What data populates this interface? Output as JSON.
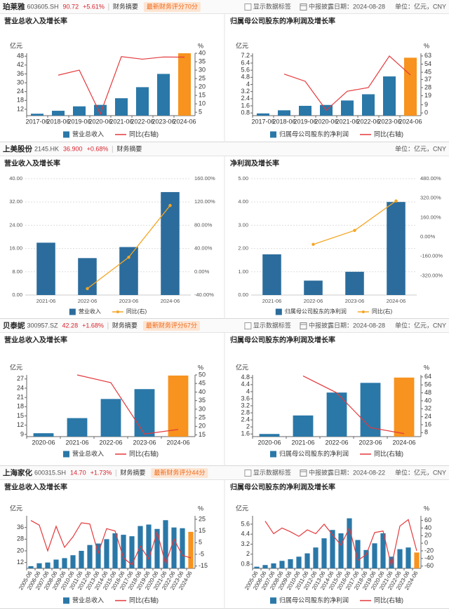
{
  "headers": [
    {
      "name": "珀莱雅",
      "code": "603605.SH",
      "price": "90.72",
      "change": "+5.61%",
      "link": "财务摘要",
      "score": "最新财务评分70分",
      "toggle": "显示数据标签",
      "date": "中报披露日期：2024-08-28",
      "unit": "单位：亿元，CNY"
    },
    {
      "name": "上美股份",
      "code": "2145.HK",
      "price": "36.900",
      "change": "+0.68%",
      "link": "财务摘要",
      "unit": "单位：亿元，CNY"
    },
    {
      "name": "贝泰妮",
      "code": "300957.SZ",
      "price": "42.28",
      "change": "+1.68%",
      "link": "财务摘要",
      "score": "最新财务评分67分",
      "toggle": "显示数据标签",
      "date": "中报披露日期：2024-08-28",
      "unit": "单位：亿元，CNY"
    },
    {
      "name": "上海家化",
      "code": "600315.SH",
      "price": "14.70",
      "change": "+1.73%",
      "link": "财务摘要",
      "score": "最新财务评分44分",
      "toggle": "显示数据标签",
      "date": "中报披露日期：2024-08-22",
      "unit": "单位：亿元，CNY"
    }
  ],
  "chart_data": [
    {
      "type": "combo",
      "title": "营业总收入及增长率",
      "y_unit": "亿元",
      "y2_unit": "%",
      "grid": false,
      "categories": [
        "2017-06",
        "2018-06",
        "2019-06",
        "2020-06",
        "2021-06",
        "2022-06",
        "2023-06",
        "2024-06"
      ],
      "series": [
        {
          "name": "营业总收入",
          "type": "bar",
          "color": "#2a78a8",
          "last_color": "#f7931e",
          "values": [
            9.0,
            11.0,
            14.0,
            15.0,
            19.5,
            27.0,
            36.0,
            50.0
          ]
        },
        {
          "name": "同比(右轴)",
          "type": "line",
          "axis": "y2",
          "color": "#e4393c",
          "values": [
            null,
            27,
            30,
            4,
            38,
            36.5,
            37.8,
            37.7
          ]
        }
      ],
      "ylim": [
        7.7,
        50
      ],
      "yticks": [
        12,
        18,
        24,
        30,
        36,
        42,
        48
      ],
      "y2lim": [
        3,
        40
      ],
      "y2ticks": [
        5,
        10,
        15,
        20,
        25,
        30,
        35,
        40
      ]
    },
    {
      "type": "combo",
      "title": "归属母公司股东的净利润及增长率",
      "y_unit": "亿元",
      "y2_unit": "%",
      "grid": false,
      "categories": [
        "2017-06",
        "2018-06",
        "2019-06",
        "2020-06",
        "2021-06",
        "2022-06",
        "2023-06",
        "2024-06"
      ],
      "series": [
        {
          "name": "归属母公司股东的净利润",
          "type": "bar",
          "color": "#2a78a8",
          "last_color": "#f7931e",
          "values": [
            0.75,
            1.1,
            1.6,
            1.7,
            2.2,
            2.9,
            4.9,
            7.0
          ]
        },
        {
          "name": "同比(右轴)",
          "type": "line",
          "axis": "y2",
          "color": "#e4393c",
          "values": [
            null,
            43,
            35,
            3,
            24,
            28,
            63,
            42
          ]
        }
      ],
      "ylim": [
        0.5,
        7.5
      ],
      "yticks": [
        0.8,
        1.6,
        2.4,
        3.2,
        4,
        4.8,
        5.6,
        6.4,
        7.2
      ],
      "y2lim": [
        -3,
        66
      ],
      "y2ticks": [
        0,
        9,
        19,
        28,
        37,
        45,
        54,
        63
      ]
    },
    {
      "type": "combo",
      "title": "营业收入及增长率",
      "grid": true,
      "markers": true,
      "categories": [
        "2021-06",
        "2022-06",
        "2023-06",
        "2024-06"
      ],
      "series": [
        {
          "name": "营业收入",
          "type": "bar",
          "color": "#2b6c9c",
          "values": [
            18.0,
            12.7,
            16.5,
            35.4
          ]
        },
        {
          "name": "同比(右)",
          "type": "line",
          "axis": "y2",
          "color": "#f5a623",
          "values": [
            null,
            -29,
            25,
            114
          ]
        }
      ],
      "ylim": [
        0,
        40
      ],
      "yticks": [
        {
          "value": 0,
          "label": "0.00"
        },
        {
          "value": 8,
          "label": "8.00"
        },
        {
          "value": 16,
          "label": "16.00"
        },
        {
          "value": 24,
          "label": "24.00"
        },
        {
          "value": 32,
          "label": "32.00"
        },
        {
          "value": 40,
          "label": "40.00"
        }
      ],
      "y2lim": [
        -40,
        160
      ],
      "y2ticks": [
        {
          "value": -40,
          "label": "-40.00%"
        },
        {
          "value": 0,
          "label": "0.00%"
        },
        {
          "value": 40,
          "label": "40.00%"
        },
        {
          "value": 80,
          "label": "80.00%"
        },
        {
          "value": 120,
          "label": "120.00%"
        },
        {
          "value": 160,
          "label": "160.00%"
        }
      ]
    },
    {
      "type": "combo",
      "title": "净利润及增长率",
      "grid": true,
      "markers": true,
      "categories": [
        "2021-06",
        "2022-06",
        "2023-06",
        "2024-06"
      ],
      "series": [
        {
          "name": "归属母公司股东的净利润",
          "type": "bar",
          "color": "#2b6c9c",
          "values": [
            1.75,
            0.62,
            1.0,
            4.0
          ]
        },
        {
          "name": "同比(右)",
          "type": "line",
          "axis": "y2",
          "color": "#f5a623",
          "values": [
            null,
            -62,
            53,
            297
          ]
        }
      ],
      "ylim": [
        0,
        5
      ],
      "yticks": [
        {
          "value": 0,
          "label": "0.00"
        },
        {
          "value": 1,
          "label": "1.00"
        },
        {
          "value": 2,
          "label": "2.00"
        },
        {
          "value": 3,
          "label": "3.00"
        },
        {
          "value": 4,
          "label": "4.00"
        },
        {
          "value": 5,
          "label": "5.00"
        }
      ],
      "y2lim": [
        -480,
        480
      ],
      "y2ticks": [
        {
          "value": -320,
          "label": "-320.00%"
        },
        {
          "value": -160,
          "label": "-160.00%"
        },
        {
          "value": 0,
          "label": "0.00%"
        },
        {
          "value": 160,
          "label": "160.00%"
        },
        {
          "value": 320,
          "label": "320.00%"
        },
        {
          "value": 480,
          "label": "480.00%"
        }
      ]
    },
    {
      "type": "combo",
      "title": "营业总收入及增长率",
      "y_unit": "亿元",
      "y2_unit": "%",
      "grid": false,
      "categories": [
        "2020-06",
        "2021-06",
        "2022-06",
        "2023-06",
        "2024-06"
      ],
      "series": [
        {
          "name": "营业总收入",
          "type": "bar",
          "color": "#2a78a8",
          "last_color": "#f7931e",
          "values": [
            9.4,
            14.3,
            20.5,
            23.7,
            28.1
          ]
        },
        {
          "name": "同比(右轴)",
          "type": "line",
          "axis": "y2",
          "color": "#e4393c",
          "values": [
            null,
            50,
            45.5,
            15.5,
            18.2
          ]
        }
      ],
      "ylim": [
        8.3,
        28.3
      ],
      "yticks": [
        9,
        12,
        15,
        18,
        21,
        24,
        27
      ],
      "y2lim": [
        14,
        50
      ],
      "y2ticks": [
        15,
        20,
        25,
        30,
        35,
        40,
        45,
        50
      ]
    },
    {
      "type": "combo",
      "title": "归属母公司股东的净利润及增长率",
      "y_unit": "亿元",
      "y2_unit": "%",
      "grid": false,
      "categories": [
        "2020-06",
        "2021-06",
        "2022-06",
        "2023-06",
        "2024-06"
      ],
      "series": [
        {
          "name": "归属母公司股东的净利润",
          "type": "bar",
          "color": "#2a78a8",
          "last_color": "#f7931e",
          "values": [
            1.6,
            2.65,
            3.95,
            4.5,
            4.8
          ]
        },
        {
          "name": "同比(右轴)",
          "type": "line",
          "axis": "y2",
          "color": "#e4393c",
          "values": [
            null,
            65,
            48,
            13,
            7
          ]
        }
      ],
      "ylim": [
        1.45,
        4.95
      ],
      "yticks": [
        1.6,
        2,
        2.4,
        2.8,
        3.2,
        3.6,
        4,
        4.4,
        4.8
      ],
      "y2lim": [
        4,
        66
      ],
      "y2ticks": [
        8,
        16,
        24,
        32,
        40,
        48,
        56,
        64
      ]
    },
    {
      "type": "combo",
      "title": "营业总收入及增长率",
      "y_unit": "亿元",
      "y2_unit": "%",
      "grid": false,
      "rotate_labels": true,
      "categories": [
        "2005-06",
        "2006-06",
        "2007-06",
        "2008-06",
        "2009-06",
        "2010-06",
        "2011-06",
        "2012-06",
        "2013-06",
        "2014-06",
        "2015-06",
        "2016-06",
        "2017-06",
        "2018-06",
        "2019-06",
        "2020-06",
        "2021-06",
        "2022-06",
        "2023-06",
        "2024-06"
      ],
      "series": [
        {
          "name": "营业总收入",
          "type": "bar",
          "color": "#2a78a8",
          "last_color": "#f7931e",
          "values": [
            9.5,
            11.5,
            12,
            14,
            15,
            17,
            20,
            24,
            25,
            28,
            32,
            31,
            30,
            37,
            38,
            35,
            41,
            36,
            35.5,
            33
          ]
        },
        {
          "name": "同比(右轴)",
          "type": "line",
          "axis": "y2",
          "color": "#e4393c",
          "values": [
            24,
            20,
            -2,
            19,
            1,
            10,
            22,
            21,
            -4,
            17,
            15,
            -8,
            -14,
            2,
            -9,
            14,
            -13,
            8,
            -6,
            -8
          ]
        }
      ],
      "ylim": [
        8,
        44
      ],
      "yticks": [
        12,
        20,
        28,
        36
      ],
      "y2lim": [
        -17,
        28
      ],
      "y2ticks": [
        -15,
        -5,
        5,
        15,
        25
      ]
    },
    {
      "type": "combo",
      "title": "归属母公司股东的净利润及增长率",
      "y_unit": "亿元",
      "y2_unit": "%",
      "grid": false,
      "rotate_labels": true,
      "categories": [
        "2005-06",
        "2006-06",
        "2007-06",
        "2008-06",
        "2009-06",
        "2010-06",
        "2011-06",
        "2012-06",
        "2013-06",
        "2014-06",
        "2015-06",
        "2016-06",
        "2017-06",
        "2018-06",
        "2019-06",
        "2020-06",
        "2021-06",
        "2022-06",
        "2023-06",
        "2024-06"
      ],
      "series": [
        {
          "name": "归属母公司股东的净利润",
          "type": "bar",
          "color": "#2a78a8",
          "last_color": "#f7931e",
          "values": [
            0.5,
            0.7,
            0.9,
            1.2,
            1.4,
            1.7,
            2.1,
            2.8,
            3.9,
            4.9,
            4.5,
            6.3,
            3.7,
            2.5,
            3.3,
            4.5,
            1.7,
            2.6,
            2.8,
            2.2
          ]
        },
        {
          "name": "同比(右轴)",
          "type": "line",
          "axis": "y2",
          "color": "#e4393c",
          "values": [
            null,
            58,
            25,
            40,
            30,
            18,
            35,
            25,
            50,
            22,
            -5,
            40,
            -45,
            -30,
            28,
            32,
            -60,
            45,
            62,
            -20
          ]
        }
      ],
      "ylim": [
        0.3,
        6.6
      ],
      "yticks": [
        0.8,
        2,
        3.2,
        4.4,
        5.6
      ],
      "y2lim": [
        -66,
        72
      ],
      "y2ticks": [
        -60,
        -40,
        -20,
        0,
        20,
        40,
        60
      ]
    }
  ]
}
